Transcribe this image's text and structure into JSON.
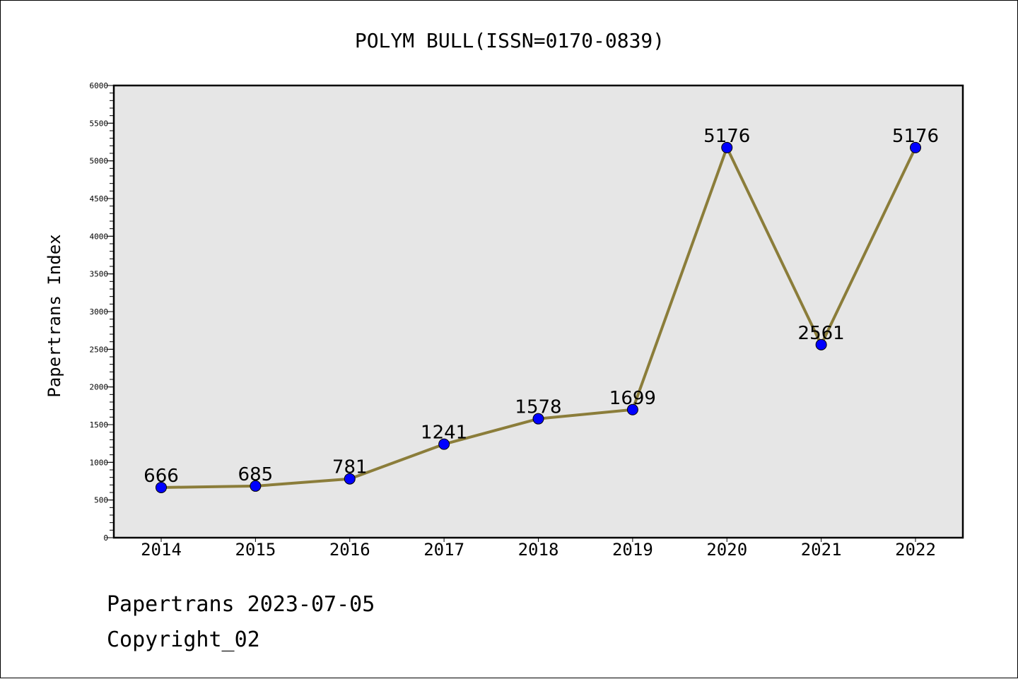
{
  "chart_data": {
    "type": "line",
    "title": "POLYM BULL(ISSN=0170-0839)",
    "ylabel": "Papertrans Index",
    "xlabel": "",
    "categories": [
      "2014",
      "2015",
      "2016",
      "2017",
      "2018",
      "2019",
      "2020",
      "2021",
      "2022"
    ],
    "series": [
      {
        "values": [
          666,
          685,
          781,
          1241,
          1578,
          1699,
          5176,
          2561,
          5176
        ],
        "line_color": "#8b7d3a",
        "marker_color": "#0000ff"
      }
    ],
    "data_labels": [
      "666",
      "685",
      "781",
      "1241",
      "1578",
      "1699",
      "5176",
      "2561",
      "5176"
    ],
    "ylim": [
      0,
      6000
    ],
    "yticks": [
      0,
      500,
      1000,
      1500,
      2000,
      2500,
      3000,
      3500,
      4000,
      4500,
      5000,
      5500,
      6000
    ],
    "yminor_step": 100,
    "plot_background": "#e6e6e6",
    "grid": false,
    "legend": "none"
  },
  "footer": {
    "line1": "Papertrans 2023-07-05",
    "line2": "Copyright_02"
  }
}
